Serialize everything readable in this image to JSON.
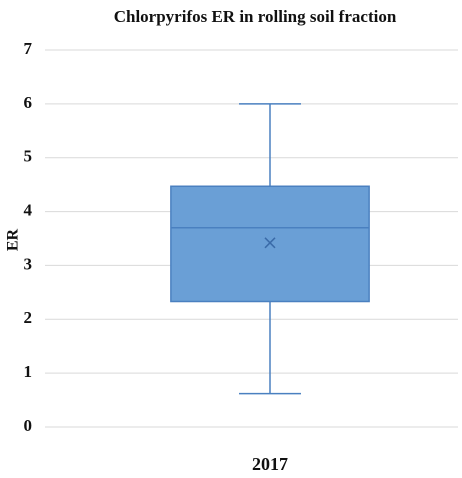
{
  "chart_data": {
    "type": "box",
    "title": "Chlorpyrifos ER in rolling soil fraction",
    "y_label": "ER",
    "categories": [
      "2017"
    ],
    "boxes": [
      {
        "min": 0.62,
        "q1": 2.33,
        "median": 3.7,
        "q3": 4.47,
        "max": 6.0,
        "mean": 3.42
      }
    ],
    "color": "#6a9fd6",
    "edge_color": "#4a80c0",
    "ylim": [
      0,
      7
    ],
    "yticks": [
      0,
      1,
      2,
      3,
      4,
      5,
      6,
      7
    ],
    "grid": true
  }
}
